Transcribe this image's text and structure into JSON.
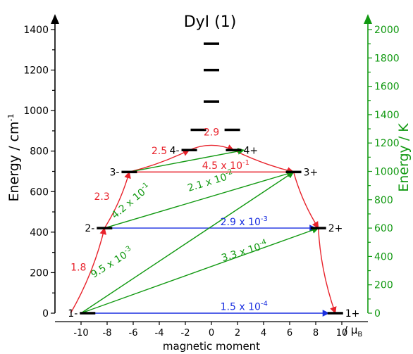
{
  "chart_data": {
    "type": "scatter",
    "title": "DyI (1)",
    "xlabel": "magnetic moment",
    "x_unit_label": "/ μ",
    "x_unit_sub": "B",
    "ylabel_left": "Energy / cm",
    "ylabel_left_sup": "-1",
    "ylabel_right": "Energy / K",
    "xlim": [
      -12,
      12
    ],
    "ylim_left": [
      0,
      1400
    ],
    "ylim_right": [
      0,
      2000
    ],
    "x_ticks": [
      -10,
      -8,
      -6,
      -4,
      -2,
      0,
      2,
      4,
      6,
      8,
      10
    ],
    "y_ticks_left": [
      0,
      200,
      400,
      600,
      800,
      1000,
      1200,
      1400
    ],
    "y_ticks_right": [
      0,
      200,
      400,
      600,
      800,
      1000,
      1200,
      1400,
      1600,
      1800,
      2000
    ],
    "colors": {
      "axis_left": "#000000",
      "axis_right": "#119911",
      "level": "#000000",
      "red": "#e8222b",
      "green": "#119911",
      "blue": "#1a2fe0"
    },
    "levels": [
      {
        "label": "1-",
        "x": -9.5,
        "y": 0,
        "side": "left"
      },
      {
        "label": "1+",
        "x": 9.5,
        "y": 0,
        "side": "right"
      },
      {
        "label": "2-",
        "x": -8.2,
        "y": 420,
        "side": "left"
      },
      {
        "label": "2+",
        "x": 8.2,
        "y": 420,
        "side": "right"
      },
      {
        "label": "3-",
        "x": -6.3,
        "y": 697,
        "side": "left"
      },
      {
        "label": "3+",
        "x": 6.3,
        "y": 697,
        "side": "right"
      },
      {
        "label": "4-",
        "x": -1.7,
        "y": 805,
        "side": "left"
      },
      {
        "label": "4+",
        "x": 1.7,
        "y": 805,
        "side": "right"
      },
      {
        "label": "",
        "x": -1.0,
        "y": 905,
        "side": "none"
      },
      {
        "label": "",
        "x": 1.6,
        "y": 905,
        "side": "none"
      },
      {
        "label": "",
        "x": 0,
        "y": 1045,
        "side": "none"
      },
      {
        "label": "",
        "x": 0,
        "y": 1200,
        "side": "none"
      },
      {
        "label": "",
        "x": 0,
        "y": 1330,
        "side": "none"
      }
    ],
    "transitions": [
      {
        "from": [
          -10.8,
          0
        ],
        "to": [
          -8.2,
          420
        ],
        "color": "red",
        "curve": 0.4,
        "label": "1.8",
        "sup": "",
        "lx": -10.2,
        "ly": 210,
        "angle": 0
      },
      {
        "from": [
          -8.2,
          420
        ],
        "to": [
          -6.3,
          697
        ],
        "color": "red",
        "curve": 0.4,
        "label": "2.3",
        "sup": "",
        "lx": -8.4,
        "ly": 560,
        "angle": 0
      },
      {
        "from": [
          -6.3,
          697
        ],
        "to": [
          -1.7,
          805
        ],
        "color": "red",
        "curve": 0.3,
        "label": "2.5",
        "sup": "",
        "lx": -4.0,
        "ly": 785,
        "angle": 0
      },
      {
        "from": [
          -1.7,
          805
        ],
        "to": [
          1.7,
          805
        ],
        "color": "red",
        "curve": -1.2,
        "label": "2.9",
        "sup": "",
        "lx": 0,
        "ly": 878,
        "angle": 0
      },
      {
        "from": [
          1.7,
          805
        ],
        "to": [
          6.3,
          697
        ],
        "color": "red",
        "curve": 0.3,
        "label": "",
        "sup": "",
        "lx": 0,
        "ly": 0,
        "angle": 0
      },
      {
        "from": [
          6.3,
          697
        ],
        "to": [
          8.2,
          420
        ],
        "color": "red",
        "curve": 0.4,
        "label": "",
        "sup": "",
        "lx": 0,
        "ly": 0,
        "angle": 0
      },
      {
        "from": [
          8.2,
          420
        ],
        "to": [
          9.5,
          0
        ],
        "color": "red",
        "curve": 0.4,
        "label": "",
        "sup": "",
        "lx": 0,
        "ly": 0,
        "angle": 0
      },
      {
        "from": [
          -6.3,
          697
        ],
        "to": [
          6.3,
          697
        ],
        "color": "red",
        "curve": 0,
        "label": "4.5 x 10",
        "sup": "-1",
        "lx": 1.1,
        "ly": 712,
        "angle": 0
      },
      {
        "from": [
          -10.0,
          0
        ],
        "to": [
          9.0,
          0
        ],
        "color": "blue",
        "curve": 0,
        "label": "1.5 x 10",
        "sup": "-4",
        "lx": 2.5,
        "ly": 15,
        "angle": 0
      },
      {
        "from": [
          -8.2,
          420
        ],
        "to": [
          8.0,
          420
        ],
        "color": "blue",
        "curve": 0,
        "label": "2.9 x 10",
        "sup": "-3",
        "lx": 2.5,
        "ly": 435,
        "angle": 0
      },
      {
        "from": [
          -6.3,
          697
        ],
        "to": [
          2.5,
          805
        ],
        "color": "green",
        "curve": 0,
        "label": "4.2 x 10",
        "sup": "-1",
        "lx": -6.0,
        "ly": 540,
        "angle": -40
      },
      {
        "from": [
          -8.2,
          420
        ],
        "to": [
          6.3,
          697
        ],
        "color": "green",
        "curve": 0,
        "label": "2.1 x 10",
        "sup": "-2",
        "lx": 0,
        "ly": 635,
        "angle": -17
      },
      {
        "from": [
          -10.0,
          0
        ],
        "to": [
          6.3,
          697
        ],
        "color": "green",
        "curve": 0,
        "label": "9.5 x 10",
        "sup": "-3",
        "lx": -7.5,
        "ly": 235,
        "angle": -32
      },
      {
        "from": [
          -10.0,
          0
        ],
        "to": [
          8.2,
          420
        ],
        "color": "green",
        "curve": 0,
        "label": "3.3 x 10",
        "sup": "-4",
        "lx": 2.6,
        "ly": 290,
        "angle": -17
      }
    ]
  }
}
